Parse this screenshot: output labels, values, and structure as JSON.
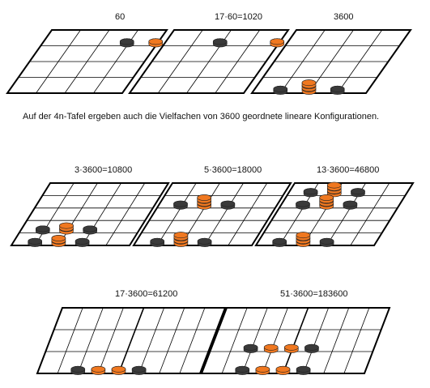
{
  "labels": {
    "b60": "60",
    "b1020": "17·60=1020",
    "b3600": "3600",
    "b10800": "3·3600=10800",
    "b18000": "5·3600=18000",
    "b46800": "13·3600=46800",
    "b61200": "17·3600=61200",
    "b183600": "51·3600=183600"
  },
  "text": {
    "paragraph": "Auf der 4n-Tafel ergeben auch die Vielfachen von 3600 geordnete lineare Konfigurationen."
  },
  "colors": {
    "black_counter": "#3a3a3a",
    "orange_counter": "#f07820",
    "grid": "#000000"
  },
  "boards": [
    {
      "id": "b60",
      "rows": 4,
      "cols": 4,
      "counters": [
        {
          "col": 1,
          "row": 2,
          "color": "black",
          "n": 1
        },
        {
          "col": 2,
          "row": 2,
          "color": "orange",
          "n": 1
        }
      ]
    },
    {
      "id": "b1020",
      "rows": 4,
      "cols": 4,
      "counters": [
        {
          "col": 0,
          "row": 2,
          "color": "black",
          "n": 1
        },
        {
          "col": 2,
          "row": 2,
          "color": "orange",
          "n": 1
        }
      ]
    },
    {
      "id": "b3600",
      "rows": 4,
      "cols": 4,
      "counters": [
        {
          "col": -1,
          "row": 0,
          "color": "black",
          "n": 1
        },
        {
          "col": 0,
          "row": 0,
          "color": "orange",
          "n": 3
        },
        {
          "col": 1,
          "row": 0,
          "color": "black",
          "n": 1
        }
      ]
    },
    {
      "id": "b10800",
      "rows": 5,
      "cols": 5,
      "counters": [
        {
          "col": -1,
          "row": 1,
          "color": "black",
          "n": 1
        },
        {
          "col": 0,
          "row": 1,
          "color": "orange",
          "n": 2
        },
        {
          "col": 1,
          "row": 1,
          "color": "black",
          "n": 1
        },
        {
          "col": -1,
          "row": 0,
          "color": "black",
          "n": 1
        },
        {
          "col": 0,
          "row": 0,
          "color": "orange",
          "n": 2
        },
        {
          "col": 1,
          "row": 0,
          "color": "black",
          "n": 1
        }
      ]
    },
    {
      "id": "b18000",
      "rows": 5,
      "cols": 5,
      "counters": [
        {
          "col": -1,
          "row": 3,
          "color": "black",
          "n": 1
        },
        {
          "col": 0,
          "row": 3,
          "color": "orange",
          "n": 3
        },
        {
          "col": 1,
          "row": 3,
          "color": "black",
          "n": 1
        },
        {
          "col": -1,
          "row": 0,
          "color": "black",
          "n": 1
        },
        {
          "col": 0,
          "row": 0,
          "color": "orange",
          "n": 3
        },
        {
          "col": 1,
          "row": 0,
          "color": "black",
          "n": 1
        }
      ]
    },
    {
      "id": "b46800",
      "rows": 5,
      "cols": 5,
      "counters": [
        {
          "col": -1,
          "row": 4,
          "color": "black",
          "n": 1
        },
        {
          "col": 0,
          "row": 4,
          "color": "orange",
          "n": 3
        },
        {
          "col": 1,
          "row": 4,
          "color": "black",
          "n": 1
        },
        {
          "col": -1,
          "row": 3,
          "color": "black",
          "n": 1
        },
        {
          "col": 0,
          "row": 3,
          "color": "orange",
          "n": 3
        },
        {
          "col": 1,
          "row": 3,
          "color": "black",
          "n": 1
        },
        {
          "col": -1,
          "row": 0,
          "color": "black",
          "n": 1
        },
        {
          "col": 0,
          "row": 0,
          "color": "orange",
          "n": 3
        },
        {
          "col": 1,
          "row": 0,
          "color": "black",
          "n": 1
        }
      ]
    },
    {
      "id": "b61200",
      "rows": 3,
      "cols": 8,
      "counters": [
        {
          "col": -2,
          "row": 0,
          "color": "black",
          "n": 1
        },
        {
          "col": -1,
          "row": 0,
          "color": "orange",
          "n": 1
        },
        {
          "col": 0,
          "row": 0,
          "color": "orange",
          "n": 1
        },
        {
          "col": 1,
          "row": 0,
          "color": "black",
          "n": 1
        }
      ]
    },
    {
      "id": "b183600",
      "rows": 3,
      "cols": 8,
      "counters": [
        {
          "col": -2,
          "row": 1,
          "color": "black",
          "n": 1
        },
        {
          "col": -1,
          "row": 1,
          "color": "orange",
          "n": 1
        },
        {
          "col": 0,
          "row": 1,
          "color": "orange",
          "n": 1
        },
        {
          "col": 1,
          "row": 1,
          "color": "black",
          "n": 1
        },
        {
          "col": -2,
          "row": 0,
          "color": "black",
          "n": 1
        },
        {
          "col": -1,
          "row": 0,
          "color": "orange",
          "n": 1
        },
        {
          "col": 0,
          "row": 0,
          "color": "orange",
          "n": 1
        },
        {
          "col": 1,
          "row": 0,
          "color": "black",
          "n": 1
        }
      ]
    }
  ]
}
